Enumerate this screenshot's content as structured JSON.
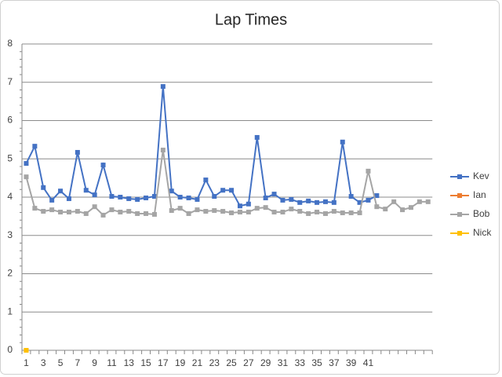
{
  "chart_data": {
    "type": "line",
    "title": "Lap Times",
    "categories": [
      1,
      null,
      3,
      null,
      5,
      null,
      7,
      null,
      9,
      null,
      11,
      null,
      13,
      null,
      15,
      null,
      17,
      null,
      19,
      null,
      21,
      null,
      23,
      null,
      25,
      null,
      27,
      null,
      29,
      null,
      31,
      null,
      33,
      null,
      35,
      null,
      37,
      null,
      39,
      null,
      41,
      null,
      null,
      null,
      null,
      null,
      null,
      null
    ],
    "series": [
      {
        "name": "Kev",
        "color": "#4472c4",
        "values": [
          4.88,
          5.33,
          4.25,
          3.92,
          4.16,
          3.96,
          5.17,
          4.18,
          4.06,
          4.84,
          4.02,
          4.0,
          3.96,
          3.94,
          3.98,
          4.02,
          6.89,
          4.16,
          4.0,
          3.98,
          3.94,
          4.45,
          4.02,
          4.18,
          4.18,
          3.77,
          3.82,
          5.56,
          3.98,
          4.08,
          3.92,
          3.94,
          3.86,
          3.9,
          3.86,
          3.88,
          3.86,
          5.44,
          4.02,
          3.86,
          3.92,
          4.04,
          null,
          null,
          null,
          null,
          null,
          null
        ]
      },
      {
        "name": "Ian",
        "color": "#ed7d31",
        "values": [
          0,
          null,
          null,
          null,
          null,
          null,
          null,
          null,
          null,
          null,
          null,
          null,
          null,
          null,
          null,
          null,
          null,
          null,
          null,
          null,
          null,
          null,
          null,
          null,
          null,
          null,
          null,
          null,
          null,
          null,
          null,
          null,
          null,
          null,
          null,
          null,
          null,
          null,
          null,
          null,
          null,
          null,
          null,
          null,
          null,
          null,
          null,
          null
        ]
      },
      {
        "name": "Bob",
        "color": "#a5a5a5",
        "values": [
          4.53,
          3.71,
          3.63,
          3.67,
          3.61,
          3.61,
          3.63,
          3.57,
          3.75,
          3.53,
          3.67,
          3.61,
          3.63,
          3.57,
          3.57,
          3.55,
          5.23,
          3.65,
          3.71,
          3.57,
          3.67,
          3.63,
          3.65,
          3.63,
          3.59,
          3.61,
          3.61,
          3.71,
          3.73,
          3.61,
          3.61,
          3.69,
          3.63,
          3.57,
          3.61,
          3.57,
          3.63,
          3.59,
          3.59,
          3.59,
          4.68,
          3.75,
          3.69,
          3.88,
          3.67,
          3.73,
          3.88,
          3.88
        ]
      },
      {
        "name": "Nick",
        "color": "#ffc000",
        "values": [
          0,
          null,
          null,
          null,
          null,
          null,
          null,
          null,
          null,
          null,
          null,
          null,
          null,
          null,
          null,
          null,
          null,
          null,
          null,
          null,
          null,
          null,
          null,
          null,
          null,
          null,
          null,
          null,
          null,
          null,
          null,
          null,
          null,
          null,
          null,
          null,
          null,
          null,
          null,
          null,
          null,
          null,
          null,
          null,
          null,
          null,
          null,
          null
        ]
      }
    ],
    "ylim": [
      0,
      8
    ],
    "yticks": [
      0,
      1,
      2,
      3,
      4,
      5,
      6,
      7,
      8
    ],
    "grid": true,
    "legend": "right"
  }
}
